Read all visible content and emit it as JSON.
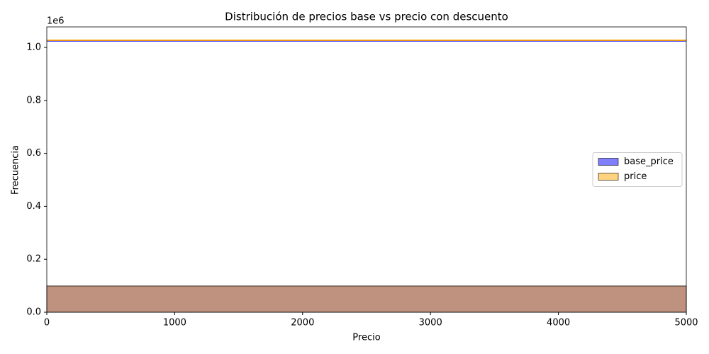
{
  "chart_data": {
    "type": "histogram",
    "title": "Distribución de precios base vs precio con descuento",
    "xlabel": "Precio",
    "ylabel": "Frecuencia",
    "y_offset_label": "1e6",
    "bins": [
      0,
      5000
    ],
    "kde_x": [
      0,
      5000
    ],
    "series": [
      {
        "name": "base_price",
        "color": "#0000ff",
        "values": [
          99000
        ],
        "kde": [
          1025000,
          1025000
        ]
      },
      {
        "name": "price",
        "color": "#ffa500",
        "values": [
          99000
        ],
        "kde": [
          1027000,
          1027000
        ]
      }
    ],
    "xlim": [
      0,
      5000
    ],
    "ylim": [
      0,
      1077500
    ],
    "xticks": [
      0,
      1000,
      2000,
      3000,
      4000,
      5000
    ],
    "yticks": [
      {
        "value": 0,
        "label": "0.0"
      },
      {
        "value": 200000,
        "label": "0.2"
      },
      {
        "value": 400000,
        "label": "0.4"
      },
      {
        "value": 600000,
        "label": "0.6"
      },
      {
        "value": 800000,
        "label": "0.8"
      },
      {
        "value": 1000000,
        "label": "1.0"
      }
    ],
    "legend_position": "center right"
  }
}
